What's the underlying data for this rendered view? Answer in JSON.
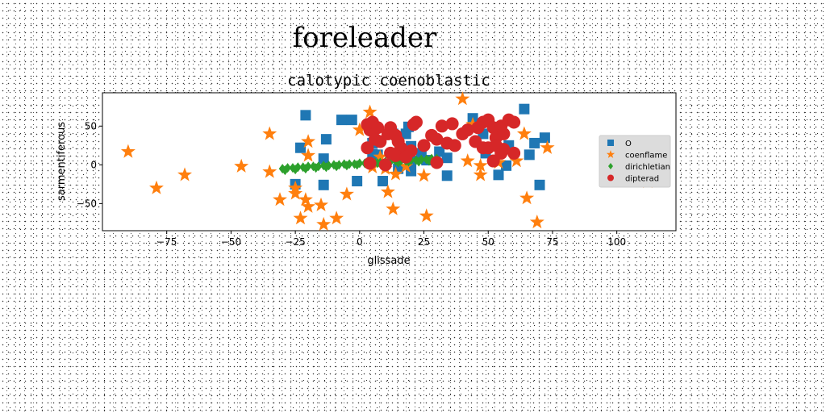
{
  "chart_data": {
    "type": "scatter",
    "suptitle": "foreleader",
    "title": "calotypic coenoblastic",
    "xlabel": "glissade",
    "ylabel": "sarmentiferous",
    "xlim": [
      -100,
      123
    ],
    "ylim": [
      -85,
      93
    ],
    "xticks": [
      -75,
      -50,
      -25,
      0,
      25,
      50,
      75,
      100
    ],
    "yticks": [
      -50,
      0,
      50
    ],
    "grid": false,
    "legend_position": "right",
    "series": [
      {
        "name": "O",
        "marker": "square",
        "color": "#1f77b4",
        "points": [
          [
            -21,
            64
          ],
          [
            -13,
            33
          ],
          [
            -23,
            22
          ],
          [
            -14,
            8
          ],
          [
            -25,
            -25
          ],
          [
            -14,
            -26
          ],
          [
            -7,
            58
          ],
          [
            -3,
            58
          ],
          [
            5,
            28
          ],
          [
            7,
            13
          ],
          [
            13,
            40
          ],
          [
            18,
            40
          ],
          [
            19,
            49
          ],
          [
            19,
            20
          ],
          [
            20,
            24
          ],
          [
            20,
            5
          ],
          [
            20,
            -8
          ],
          [
            24,
            15
          ],
          [
            26,
            6
          ],
          [
            31,
            17
          ],
          [
            34,
            9
          ],
          [
            34,
            -14
          ],
          [
            44,
            60
          ],
          [
            48,
            40
          ],
          [
            49,
            15
          ],
          [
            54,
            -13
          ],
          [
            57,
            -1
          ],
          [
            58,
            25
          ],
          [
            64,
            72
          ],
          [
            66,
            13
          ],
          [
            68,
            28
          ],
          [
            72,
            35
          ],
          [
            70,
            -26
          ],
          [
            -1,
            -21
          ],
          [
            9,
            -21
          ],
          [
            5,
            14
          ],
          [
            15,
            -5
          ]
        ]
      },
      {
        "name": "coenflame",
        "marker": "star",
        "color": "#ff7f0e",
        "points": [
          [
            -90,
            17
          ],
          [
            -79,
            -30
          ],
          [
            -68,
            -13
          ],
          [
            -46,
            -2
          ],
          [
            -35,
            40
          ],
          [
            -35,
            -9
          ],
          [
            -31,
            -45
          ],
          [
            -25,
            -30
          ],
          [
            -25,
            -37
          ],
          [
            -23,
            -69
          ],
          [
            -21,
            -45
          ],
          [
            -20,
            -54
          ],
          [
            -20,
            30
          ],
          [
            -20,
            12
          ],
          [
            -15,
            -52
          ],
          [
            -14,
            -77
          ],
          [
            -9,
            -69
          ],
          [
            -5,
            -38
          ],
          [
            0,
            45
          ],
          [
            4,
            68
          ],
          [
            5,
            -3
          ],
          [
            8,
            10
          ],
          [
            10,
            -5
          ],
          [
            11,
            -35
          ],
          [
            13,
            -57
          ],
          [
            14,
            -12
          ],
          [
            18,
            -2
          ],
          [
            25,
            -14
          ],
          [
            26,
            -66
          ],
          [
            40,
            85
          ],
          [
            42,
            5
          ],
          [
            44,
            52
          ],
          [
            47,
            -1
          ],
          [
            47,
            -13
          ],
          [
            54,
            3
          ],
          [
            61,
            5
          ],
          [
            64,
            40
          ],
          [
            65,
            -43
          ],
          [
            69,
            -74
          ],
          [
            73,
            22
          ],
          [
            112,
            -22
          ]
        ]
      },
      {
        "name": "dirichletian",
        "marker": "diamond",
        "color": "#2ca02c",
        "points": [
          [
            -30,
            -5
          ],
          [
            -28,
            -4
          ],
          [
            -26,
            -4
          ],
          [
            -24,
            -3
          ],
          [
            -22,
            -3
          ],
          [
            -20,
            -2
          ],
          [
            -18,
            -2
          ],
          [
            -16,
            -2
          ],
          [
            -14,
            -1
          ],
          [
            -12,
            -1
          ],
          [
            -10,
            0
          ],
          [
            -8,
            0
          ],
          [
            -6,
            1
          ],
          [
            -4,
            1
          ],
          [
            -2,
            1
          ],
          [
            0,
            2
          ],
          [
            2,
            2
          ],
          [
            4,
            3
          ],
          [
            6,
            3
          ],
          [
            8,
            3
          ],
          [
            10,
            4
          ],
          [
            12,
            4
          ],
          [
            14,
            5
          ],
          [
            16,
            5
          ],
          [
            18,
            5
          ],
          [
            20,
            6
          ],
          [
            22,
            6
          ],
          [
            24,
            7
          ],
          [
            26,
            7
          ],
          [
            28,
            8
          ],
          [
            30,
            8
          ],
          [
            -29,
            -7
          ],
          [
            -25,
            -6
          ],
          [
            -21,
            -5
          ],
          [
            -17,
            -4
          ],
          [
            -13,
            -3
          ],
          [
            -9,
            -2
          ],
          [
            -5,
            -1
          ],
          [
            -1,
            0
          ],
          [
            3,
            1
          ],
          [
            7,
            2
          ],
          [
            11,
            2
          ],
          [
            15,
            3
          ],
          [
            19,
            4
          ],
          [
            23,
            4
          ],
          [
            27,
            5
          ]
        ]
      },
      {
        "name": "dipterad",
        "marker": "circle",
        "color": "#d62728",
        "points": [
          [
            3,
            52
          ],
          [
            4,
            45
          ],
          [
            5,
            55
          ],
          [
            7,
            48
          ],
          [
            6,
            33
          ],
          [
            8,
            30
          ],
          [
            11,
            40
          ],
          [
            12,
            48
          ],
          [
            14,
            38
          ],
          [
            15,
            30
          ],
          [
            16,
            22
          ],
          [
            12,
            15
          ],
          [
            14,
            12
          ],
          [
            20,
            18
          ],
          [
            21,
            52
          ],
          [
            22,
            55
          ],
          [
            3,
            22
          ],
          [
            4,
            2
          ],
          [
            10,
            0
          ],
          [
            28,
            38
          ],
          [
            30,
            33
          ],
          [
            32,
            50
          ],
          [
            34,
            28
          ],
          [
            36,
            53
          ],
          [
            37,
            25
          ],
          [
            40,
            40
          ],
          [
            42,
            45
          ],
          [
            45,
            30
          ],
          [
            46,
            48
          ],
          [
            48,
            55
          ],
          [
            50,
            58
          ],
          [
            52,
            48
          ],
          [
            53,
            35
          ],
          [
            55,
            50
          ],
          [
            56,
            40
          ],
          [
            58,
            58
          ],
          [
            60,
            55
          ],
          [
            50,
            22
          ],
          [
            53,
            25
          ],
          [
            48,
            22
          ],
          [
            55,
            15
          ],
          [
            52,
            5
          ],
          [
            56,
            20
          ],
          [
            60,
            15
          ],
          [
            30,
            3
          ],
          [
            25,
            25
          ],
          [
            18,
            10
          ]
        ]
      }
    ]
  }
}
